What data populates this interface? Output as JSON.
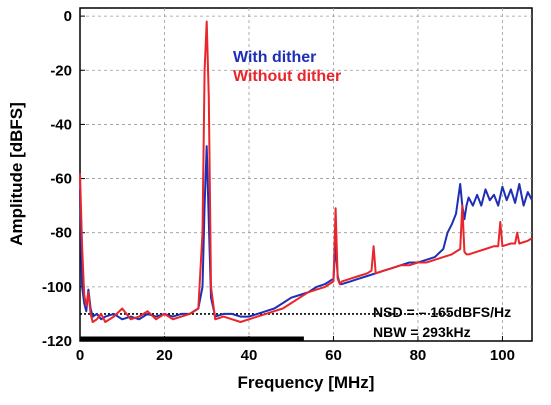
{
  "chart_data": {
    "type": "line",
    "xlabel": "Frequency [MHz]",
    "ylabel": "Amplitude [dBFS]",
    "xlim": [
      0,
      107
    ],
    "ylim": [
      -120,
      3
    ],
    "xticks": [
      "0",
      "20",
      "40",
      "60",
      "80",
      "100"
    ],
    "yticks": [
      "0",
      "-20",
      "-40",
      "-60",
      "-80",
      "-100",
      "-120"
    ],
    "grid": "dashed",
    "legend_position": "top-center",
    "series": [
      {
        "name": "With dither",
        "color": "#1f2fb5",
        "x": [
          0,
          0.5,
          1,
          1.5,
          2,
          2.5,
          3,
          4,
          5,
          6,
          8,
          10,
          12,
          14,
          16,
          18,
          20,
          22,
          24,
          26,
          28,
          29,
          29.5,
          30,
          30.5,
          31,
          32,
          34,
          36,
          38,
          40,
          42,
          44,
          46,
          48,
          50,
          52,
          54,
          56,
          58,
          60,
          60.5,
          61,
          61.5,
          62,
          64,
          66,
          68,
          70,
          72,
          74,
          76,
          78,
          80,
          82,
          84,
          86,
          87,
          88,
          89,
          90,
          90.5,
          91,
          91.5,
          92,
          93,
          94,
          95,
          96,
          97,
          98,
          99,
          100,
          101,
          102,
          103,
          104,
          105,
          106,
          107
        ],
        "y": [
          -64,
          -100,
          -106,
          -109,
          -101,
          -108,
          -111,
          -110,
          -112,
          -111,
          -110,
          -112,
          -111,
          -112,
          -110,
          -111,
          -110,
          -111,
          -110,
          -110,
          -108,
          -100,
          -70,
          -48,
          -76,
          -104,
          -111,
          -110,
          -110,
          -111,
          -111,
          -110,
          -109,
          -108,
          -106,
          -104,
          -103,
          -102,
          -100,
          -99,
          -97,
          -84,
          -96,
          -99,
          -99,
          -98,
          -97,
          -96,
          -95,
          -94,
          -93,
          -92,
          -91,
          -91,
          -90,
          -89,
          -86,
          -80,
          -77,
          -73,
          -62,
          -70,
          -75,
          -70,
          -67,
          -70,
          -66,
          -70,
          -64,
          -68,
          -66,
          -70,
          -63,
          -68,
          -64,
          -69,
          -62,
          -70,
          -65,
          -68
        ]
      },
      {
        "name": "Without dither",
        "color": "#e8262b",
        "x": [
          0,
          0.5,
          1,
          1.5,
          2,
          2.5,
          3,
          4,
          5,
          6,
          8,
          10,
          12,
          14,
          16,
          18,
          20,
          22,
          24,
          26,
          28,
          29,
          29.5,
          30,
          30.5,
          31,
          32,
          34,
          36,
          38,
          40,
          42,
          44,
          46,
          48,
          50,
          52,
          54,
          56,
          58,
          60,
          60.5,
          61,
          61.5,
          62,
          64,
          66,
          68,
          69,
          69.5,
          70,
          72,
          74,
          76,
          78,
          80,
          82,
          84,
          86,
          88,
          90,
          90.5,
          91,
          91.5,
          92,
          94,
          96,
          98,
          99,
          99.5,
          100,
          102,
          103,
          103.5,
          104,
          106,
          107
        ],
        "y": [
          -58,
          -85,
          -103,
          -107,
          -102,
          -110,
          -113,
          -112,
          -110,
          -113,
          -111,
          -108,
          -112,
          -111,
          -109,
          -112,
          -110,
          -112,
          -111,
          -110,
          -108,
          -80,
          -20,
          -2,
          -30,
          -100,
          -112,
          -111,
          -112,
          -113,
          -112,
          -111,
          -110,
          -109,
          -108,
          -106,
          -104,
          -102,
          -101,
          -100,
          -98,
          -71,
          -97,
          -99,
          -98,
          -97,
          -96,
          -95,
          -94,
          -85,
          -95,
          -94,
          -93,
          -92,
          -92,
          -91,
          -91,
          -90,
          -89,
          -88,
          -86,
          -70,
          -87,
          -88,
          -88,
          -87,
          -86,
          -85,
          -85,
          -76,
          -85,
          -84,
          -84,
          -80,
          -84,
          -83,
          -82
        ]
      }
    ],
    "noise_floor": {
      "y": -110,
      "x_start": 0,
      "x_end": 107
    },
    "nbw_bar": {
      "y": -120,
      "x_start": 0,
      "x_end": 53
    },
    "annotations": [
      "NSD = – 165dBFS/Hz",
      "NBW = 293kHz"
    ]
  }
}
